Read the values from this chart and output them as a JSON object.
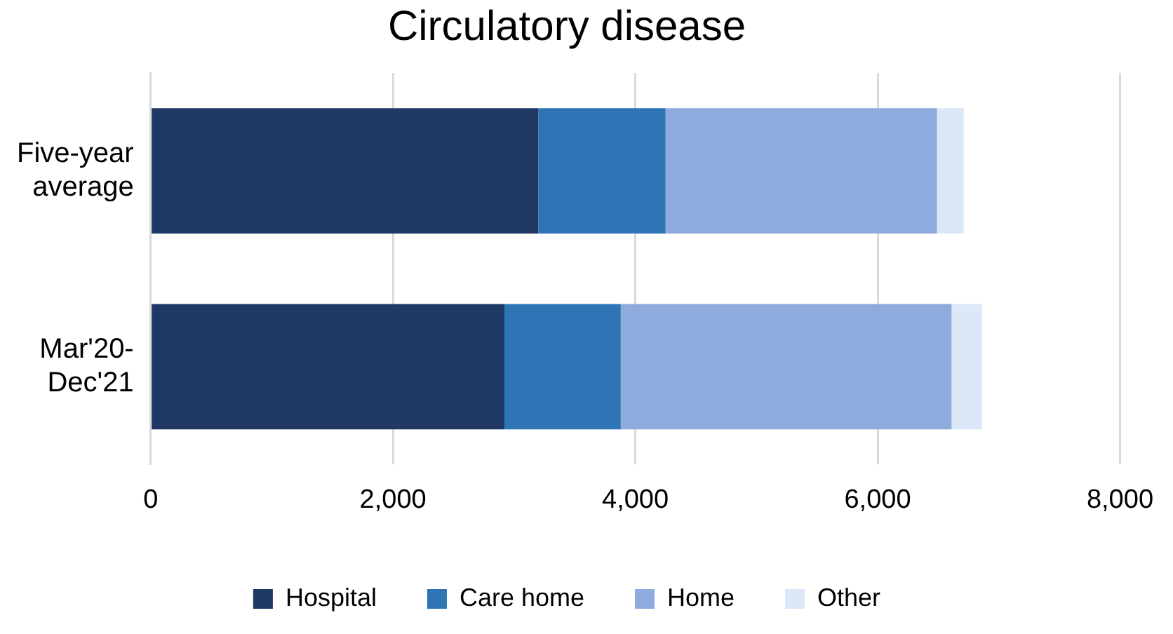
{
  "chart_data": {
    "type": "bar",
    "title": "Circulatory disease",
    "orientation": "horizontal",
    "stacked": true,
    "categories": [
      "Five-year average",
      "Mar'20-Dec'21"
    ],
    "series": [
      {
        "name": "Hospital",
        "color": "#203864",
        "values": [
          3200,
          2920
        ]
      },
      {
        "name": "Care home",
        "color": "#2e75b6",
        "values": [
          1050,
          960
        ]
      },
      {
        "name": "Home",
        "color": "#8faadc",
        "values": [
          2240,
          2730
        ]
      },
      {
        "name": "Other",
        "color": "#dae8f7",
        "values": [
          220,
          250
        ]
      }
    ],
    "xlim": [
      0,
      8000
    ],
    "xticks": [
      0,
      {
        "value": 2000,
        "label": "2,000"
      },
      {
        "value": 4000,
        "label": "4,000"
      },
      {
        "value": 6000,
        "label": "6,000"
      },
      {
        "value": 8000,
        "label": "8,000"
      }
    ],
    "grid": "x",
    "legend": "bottom"
  }
}
